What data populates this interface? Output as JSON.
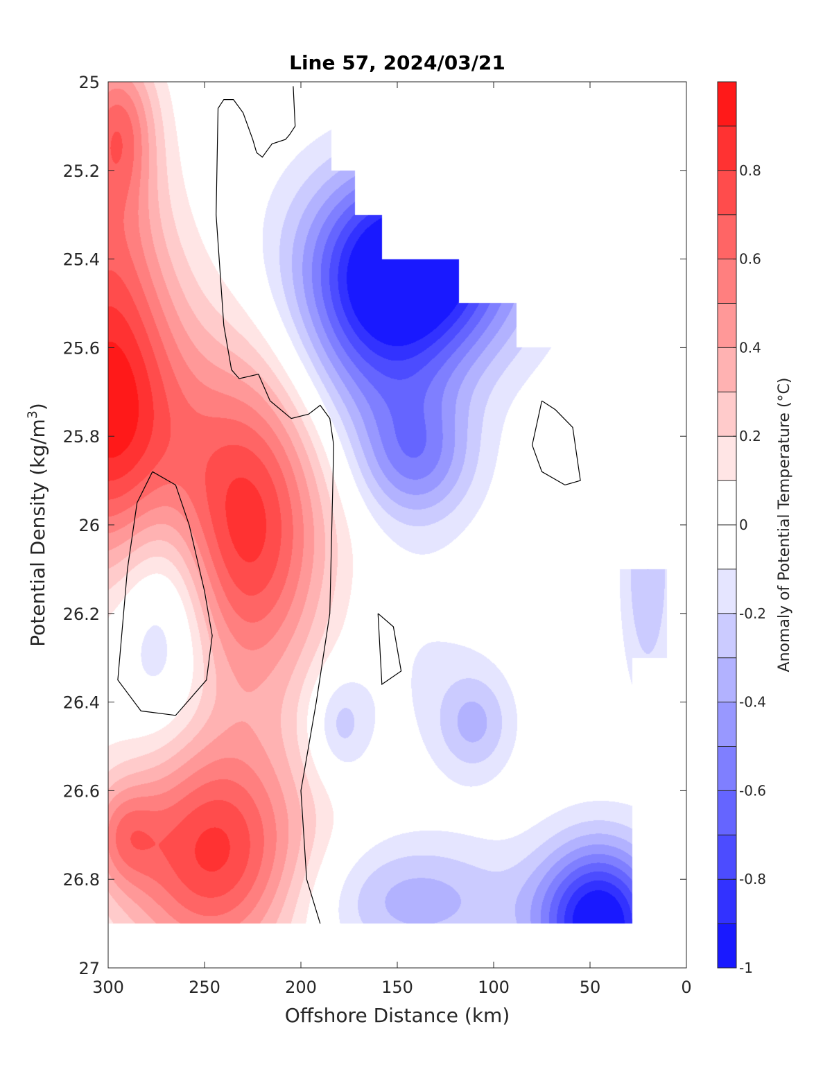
{
  "chart_data": {
    "type": "heatmap",
    "subtype": "filled-contour",
    "title": "Line 57, 2024/03/21",
    "xlabel": "Offshore Distance (km)",
    "ylabel_main": "Potential Density (kg/m",
    "ylabel_sup": "3",
    "ylabel_close": ")",
    "xlim": [
      300,
      0
    ],
    "ylim": [
      25,
      27
    ],
    "x_reversed": true,
    "y_reversed": true,
    "x_ticks": [
      300,
      250,
      200,
      150,
      100,
      50,
      0
    ],
    "x_tick_labels": [
      "300",
      "250",
      "200",
      "150",
      "100",
      "50",
      "0"
    ],
    "y_ticks": [
      25,
      25.2,
      25.4,
      25.6,
      25.8,
      26,
      26.2,
      26.4,
      26.6,
      26.8,
      27
    ],
    "y_tick_labels": [
      "25",
      "25.2",
      "25.4",
      "25.6",
      "25.8",
      "26",
      "26.2",
      "26.4",
      "26.6",
      "26.8",
      "27"
    ],
    "colorbar": {
      "label": "Anomaly of Potential Temperature (°C)",
      "min": -1,
      "max": 1,
      "levels": [
        -1,
        -0.9,
        -0.8,
        -0.7,
        -0.6,
        -0.5,
        -0.4,
        -0.3,
        -0.2,
        -0.1,
        0,
        0.1,
        0.2,
        0.3,
        0.4,
        0.5,
        0.6,
        0.7,
        0.8,
        0.9,
        1
      ],
      "tick_values": [
        -1,
        -0.8,
        -0.6,
        -0.4,
        -0.2,
        0,
        0.2,
        0.4,
        0.6,
        0.8
      ],
      "tick_labels": [
        "-1",
        "-0.8",
        "-0.6",
        "-0.4",
        "-0.2",
        "0",
        "0.2",
        "0.4",
        "0.6",
        "0.8"
      ],
      "colormap": "blue-white-red",
      "color_low": "#0000ff",
      "color_mid": "#ffffff",
      "color_high": "#ff0000"
    },
    "grid": false,
    "valid_region": [
      [
        300,
        25
      ],
      [
        202,
        25
      ],
      [
        202,
        25.1
      ],
      [
        184,
        25.1
      ],
      [
        184,
        25.2
      ],
      [
        172,
        25.2
      ],
      [
        172,
        25.3
      ],
      [
        158,
        25.3
      ],
      [
        158,
        25.4
      ],
      [
        118,
        25.4
      ],
      [
        118,
        25.5
      ],
      [
        88,
        25.5
      ],
      [
        88,
        25.6
      ],
      [
        50,
        25.6
      ],
      [
        50,
        25.7
      ],
      [
        35,
        25.7
      ],
      [
        35,
        26.1
      ],
      [
        10,
        26.1
      ],
      [
        10,
        26.3
      ],
      [
        28,
        26.3
      ],
      [
        28,
        26.9
      ],
      [
        300,
        26.9
      ]
    ],
    "blobs": [
      {
        "x": 295,
        "y": 25.1,
        "rx": 20,
        "ry": 0.18,
        "value": 0.55
      },
      {
        "x": 300,
        "y": 25.75,
        "rx": 40,
        "ry": 0.35,
        "value": 0.95
      },
      {
        "x": 300,
        "y": 25.35,
        "rx": 30,
        "ry": 0.25,
        "value": 0.3
      },
      {
        "x": 228,
        "y": 26.0,
        "rx": 42,
        "ry": 0.38,
        "value": 0.85
      },
      {
        "x": 246,
        "y": 26.74,
        "rx": 48,
        "ry": 0.26,
        "value": 0.82
      },
      {
        "x": 292,
        "y": 26.7,
        "rx": 18,
        "ry": 0.12,
        "value": 0.35
      },
      {
        "x": 270,
        "y": 26.2,
        "rx": 26,
        "ry": 0.28,
        "value": -0.4
      },
      {
        "x": 140,
        "y": 25.4,
        "rx": 55,
        "ry": 0.22,
        "value": -1.05
      },
      {
        "x": 160,
        "y": 25.6,
        "rx": 45,
        "ry": 0.25,
        "value": -0.45
      },
      {
        "x": 140,
        "y": 25.85,
        "rx": 30,
        "ry": 0.15,
        "value": -0.45
      },
      {
        "x": 45,
        "y": 26.9,
        "rx": 32,
        "ry": 0.18,
        "value": -1.05
      },
      {
        "x": 20,
        "y": 26.1,
        "rx": 14,
        "ry": 0.3,
        "value": -0.3
      },
      {
        "x": 140,
        "y": 26.85,
        "rx": 55,
        "ry": 0.14,
        "value": -0.35
      },
      {
        "x": 110,
        "y": 26.45,
        "rx": 20,
        "ry": 0.12,
        "value": -0.3
      },
      {
        "x": 180,
        "y": 26.45,
        "rx": 16,
        "ry": 0.12,
        "value": -0.28
      },
      {
        "x": 140,
        "y": 26.3,
        "rx": 40,
        "ry": 0.25,
        "value": -0.1
      }
    ],
    "zero_contours": [
      [
        [
          204,
          25.01
        ],
        [
          203,
          25.1
        ],
        [
          206,
          25.12
        ],
        [
          208,
          25.13
        ],
        [
          215,
          25.14
        ],
        [
          220,
          25.17
        ],
        [
          223,
          25.16
        ],
        [
          225,
          25.13
        ],
        [
          230,
          25.07
        ],
        [
          235,
          25.04
        ],
        [
          240,
          25.04
        ],
        [
          243,
          25.06
        ],
        [
          244,
          25.3
        ],
        [
          240,
          25.55
        ],
        [
          236,
          25.65
        ],
        [
          232,
          25.67
        ],
        [
          222,
          25.66
        ],
        [
          216,
          25.72
        ],
        [
          205,
          25.76
        ],
        [
          196,
          25.75
        ],
        [
          190,
          25.73
        ],
        [
          185,
          25.76
        ],
        [
          183,
          25.82
        ],
        [
          185,
          26.2
        ],
        [
          192,
          26.4
        ],
        [
          200,
          26.6
        ],
        [
          197,
          26.8
        ],
        [
          190,
          26.9
        ]
      ],
      [
        [
          277,
          25.88
        ],
        [
          265,
          25.91
        ],
        [
          258,
          26.0
        ],
        [
          250,
          26.15
        ],
        [
          246,
          26.25
        ],
        [
          249,
          26.35
        ],
        [
          265,
          26.43
        ],
        [
          283,
          26.42
        ],
        [
          295,
          26.35
        ],
        [
          290,
          26.1
        ],
        [
          285,
          25.95
        ],
        [
          277,
          25.88
        ]
      ],
      [
        [
          75,
          25.72
        ],
        [
          68,
          25.74
        ],
        [
          59,
          25.78
        ],
        [
          55,
          25.9
        ],
        [
          63,
          25.91
        ],
        [
          75,
          25.88
        ],
        [
          80,
          25.82
        ],
        [
          75,
          25.72
        ]
      ],
      [
        [
          160,
          26.2
        ],
        [
          152,
          26.23
        ],
        [
          148,
          26.33
        ],
        [
          158,
          26.36
        ],
        [
          160,
          26.2
        ]
      ]
    ]
  }
}
